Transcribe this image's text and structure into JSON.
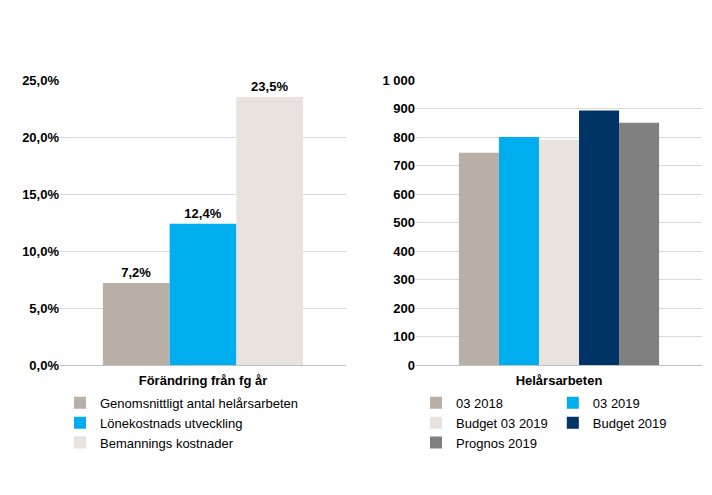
{
  "chart_data": [
    {
      "type": "bar",
      "x_label": "Förändring från fg år",
      "categories": [
        null
      ],
      "series": [
        {
          "name": "Genomsnittligt antal helårsarbeten",
          "color": "#b8afa6",
          "values": [
            7.2
          ],
          "value_labels": [
            "7,2%"
          ]
        },
        {
          "name": "Lönekostnads utveckling",
          "color": "#00aeef",
          "values": [
            12.4
          ],
          "value_labels": [
            "12,4%"
          ]
        },
        {
          "name": "Bemannings kostnader",
          "color": "#e8e3de",
          "values": [
            23.5
          ],
          "value_labels": [
            "23,5%"
          ]
        }
      ],
      "ylim": [
        0,
        25
      ],
      "yticks": [
        {
          "value": 0,
          "label": "0,0%"
        },
        {
          "value": 5,
          "label": "5,0%"
        },
        {
          "value": 10,
          "label": "10,0%"
        },
        {
          "value": 15,
          "label": "15,0%"
        },
        {
          "value": 20,
          "label": "20,0%"
        },
        {
          "value": 25,
          "label": "25,0%"
        }
      ],
      "grid": true,
      "data_labels": true,
      "legend": "bottom"
    },
    {
      "type": "bar",
      "x_label": "Helårsarbeten",
      "categories": [
        null
      ],
      "series": [
        {
          "name": "03 2018",
          "color": "#b8afa6",
          "values": [
            745
          ]
        },
        {
          "name": "03 2019",
          "color": "#00aeef",
          "values": [
            800
          ]
        },
        {
          "name": "Budget 03 2019",
          "color": "#e8e3de",
          "values": [
            790
          ]
        },
        {
          "name": "Budget 2019",
          "color": "#003366",
          "values": [
            893
          ]
        },
        {
          "name": "Prognos 2019",
          "color": "#808080",
          "values": [
            850
          ]
        }
      ],
      "ylim": [
        0,
        1000
      ],
      "yticks": [
        0,
        100,
        200,
        300,
        400,
        500,
        600,
        700,
        800,
        900,
        {
          "value": 1000,
          "label": "1 000"
        }
      ],
      "grid": true,
      "data_labels": false,
      "legend": "bottom"
    }
  ]
}
